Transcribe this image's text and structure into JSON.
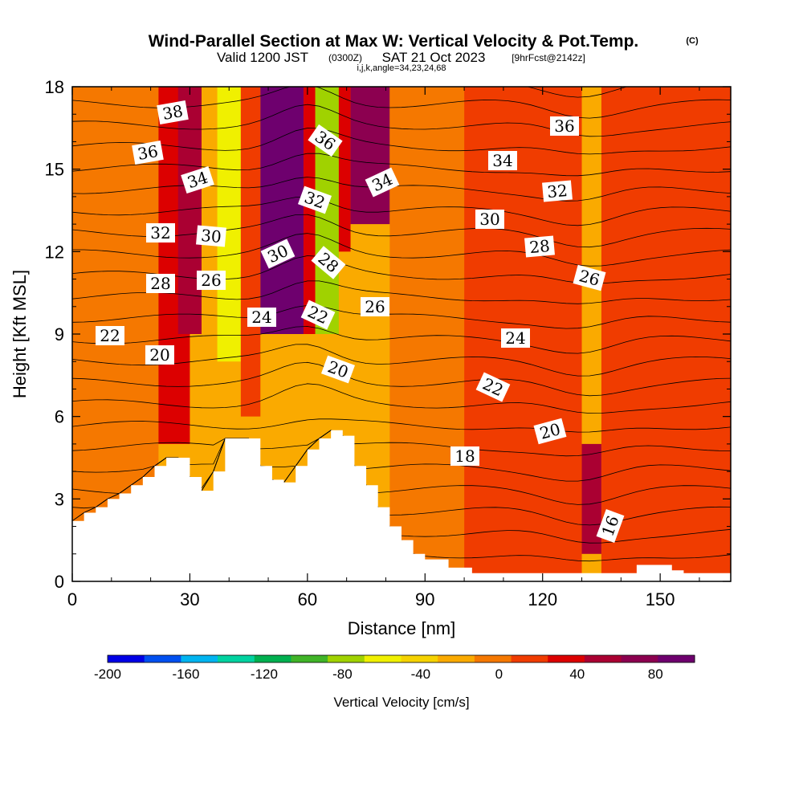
{
  "chart_data": {
    "type": "heatmap",
    "title": "Wind-Parallel Section at Max W: Vertical Velocity & Pot.Temp.",
    "title_mark": "(C)",
    "subtitle": {
      "valid": "Valid 1200 JST",
      "utc": "(0300Z)",
      "date": "SAT 21 Oct 2023",
      "fcst": "[9hrFcst@2142z]"
    },
    "index_line": "i,j,k,angle=34,23,24,68",
    "xlabel": "Distance [nm]",
    "ylabel": "Height [Kft MSL]",
    "xlim": [
      0,
      168
    ],
    "ylim": [
      0,
      18
    ],
    "x_ticks": [
      "0",
      "30",
      "60",
      "90",
      "120",
      "150"
    ],
    "y_ticks": [
      "0",
      "3",
      "6",
      "9",
      "12",
      "15",
      "18"
    ],
    "colorbar": {
      "label": "Vertical Velocity [cm/s]",
      "tick_labels": [
        "-200",
        "-160",
        "-120",
        "-80",
        "-40",
        "0",
        "40",
        "80"
      ],
      "tick_values": [
        -200,
        -160,
        -120,
        -80,
        -40,
        0,
        40,
        80
      ],
      "range": [
        -200,
        100
      ],
      "colors": [
        "#0000e6",
        "#0050f0",
        "#00b4f0",
        "#00d2a0",
        "#00b050",
        "#40b428",
        "#a0d200",
        "#f0f000",
        "#f5d200",
        "#faaa00",
        "#f57800",
        "#f03c00",
        "#dc0000",
        "#aa0032",
        "#8c0050",
        "#6e006e"
      ]
    },
    "w_field": {
      "x": [
        0,
        6,
        12,
        18,
        24,
        27,
        30,
        33,
        36,
        40,
        45,
        50,
        55,
        60,
        63,
        66,
        69,
        72,
        76,
        80,
        85,
        90,
        95,
        100,
        105,
        110,
        115,
        120,
        125,
        130,
        135,
        140,
        145,
        150,
        155,
        160,
        165,
        168
      ],
      "y": [
        0,
        1,
        2,
        3,
        4,
        5,
        6,
        7,
        8,
        9,
        10,
        11,
        12,
        13,
        14,
        15,
        16,
        17,
        18
      ],
      "bands": [
        {
          "x0": 0,
          "x1": 22,
          "y0": 0,
          "y1": 18,
          "w": 0
        },
        {
          "x0": 0,
          "x1": 8,
          "y0": 3,
          "y1": 6,
          "w": -10
        },
        {
          "x0": 22,
          "x1": 30,
          "y0": 5,
          "y1": 18,
          "w": 25
        },
        {
          "x0": 27,
          "x1": 33,
          "y0": 9,
          "y1": 18,
          "w": 50
        },
        {
          "x0": 33,
          "x1": 37,
          "y0": 7,
          "y1": 18,
          "w": -30
        },
        {
          "x0": 37,
          "x1": 43,
          "y0": 8,
          "y1": 18,
          "w": -65
        },
        {
          "x0": 43,
          "x1": 48,
          "y0": 6,
          "y1": 18,
          "w": 15
        },
        {
          "x0": 48,
          "x1": 59,
          "y0": 9,
          "y1": 18,
          "w": 85
        },
        {
          "x0": 59,
          "x1": 62,
          "y0": 9,
          "y1": 18,
          "w": 25
        },
        {
          "x0": 62,
          "x1": 68,
          "y0": 9,
          "y1": 18,
          "w": -85
        },
        {
          "x0": 68,
          "x1": 71,
          "y0": 12,
          "y1": 18,
          "w": 25
        },
        {
          "x0": 71,
          "x1": 81,
          "y0": 13,
          "y1": 18,
          "w": 80
        },
        {
          "x0": 81,
          "x1": 100,
          "y0": 0,
          "y1": 18,
          "w": 5
        },
        {
          "x0": 100,
          "x1": 130,
          "y0": 0,
          "y1": 18,
          "w": 15
        },
        {
          "x0": 130,
          "x1": 135,
          "y0": 1,
          "y1": 5,
          "w": 45
        },
        {
          "x0": 135,
          "x1": 168,
          "y0": 0,
          "y1": 18,
          "w": 10
        }
      ]
    },
    "theta_labels": [
      "38",
      "36",
      "34",
      "32",
      "30",
      "28",
      "26",
      "24",
      "22",
      "20",
      "36",
      "32",
      "30",
      "28",
      "22",
      "20",
      "36",
      "34",
      "32",
      "30",
      "28",
      "26",
      "24",
      "22",
      "20",
      "18",
      "16",
      "34",
      "26"
    ],
    "theta_contours_k": [
      16,
      17,
      18,
      19,
      20,
      21,
      22,
      23,
      24,
      25,
      26,
      27,
      28,
      29,
      30,
      31,
      32,
      33,
      34,
      35,
      36,
      37,
      38
    ]
  }
}
